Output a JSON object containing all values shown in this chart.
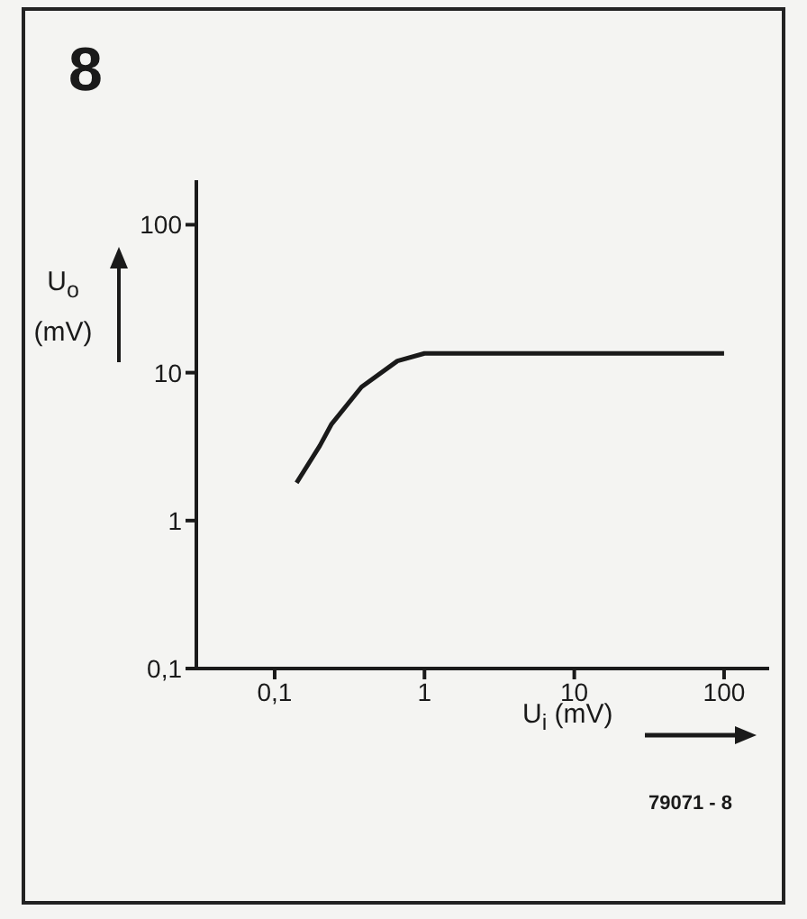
{
  "chart_data": {
    "type": "line",
    "title": "8",
    "xlabel": "U$_{i}$ (mV)",
    "ylabel": "U$_{o}$ (mV)",
    "annotations": [
      "79071 - 8"
    ],
    "log": "xy",
    "marker": "none",
    "line_style": "solid",
    "xlim": [
      0.03,
      200
    ],
    "xticks": [
      {
        "value": 0.1,
        "label": "0,1"
      },
      1,
      10,
      100
    ],
    "ylim": [
      0.1,
      200
    ],
    "yticks": [
      {
        "value": 0.1,
        "label": "0,1"
      },
      1,
      10,
      100
    ],
    "series": [
      {
        "color": "#1a1a1a",
        "x": [
          0.14,
          0.2,
          0.24,
          0.38,
          0.66,
          1,
          100
        ],
        "values": [
          1.8,
          3.2,
          4.5,
          8,
          12,
          13.5,
          13.5
        ]
      }
    ]
  }
}
